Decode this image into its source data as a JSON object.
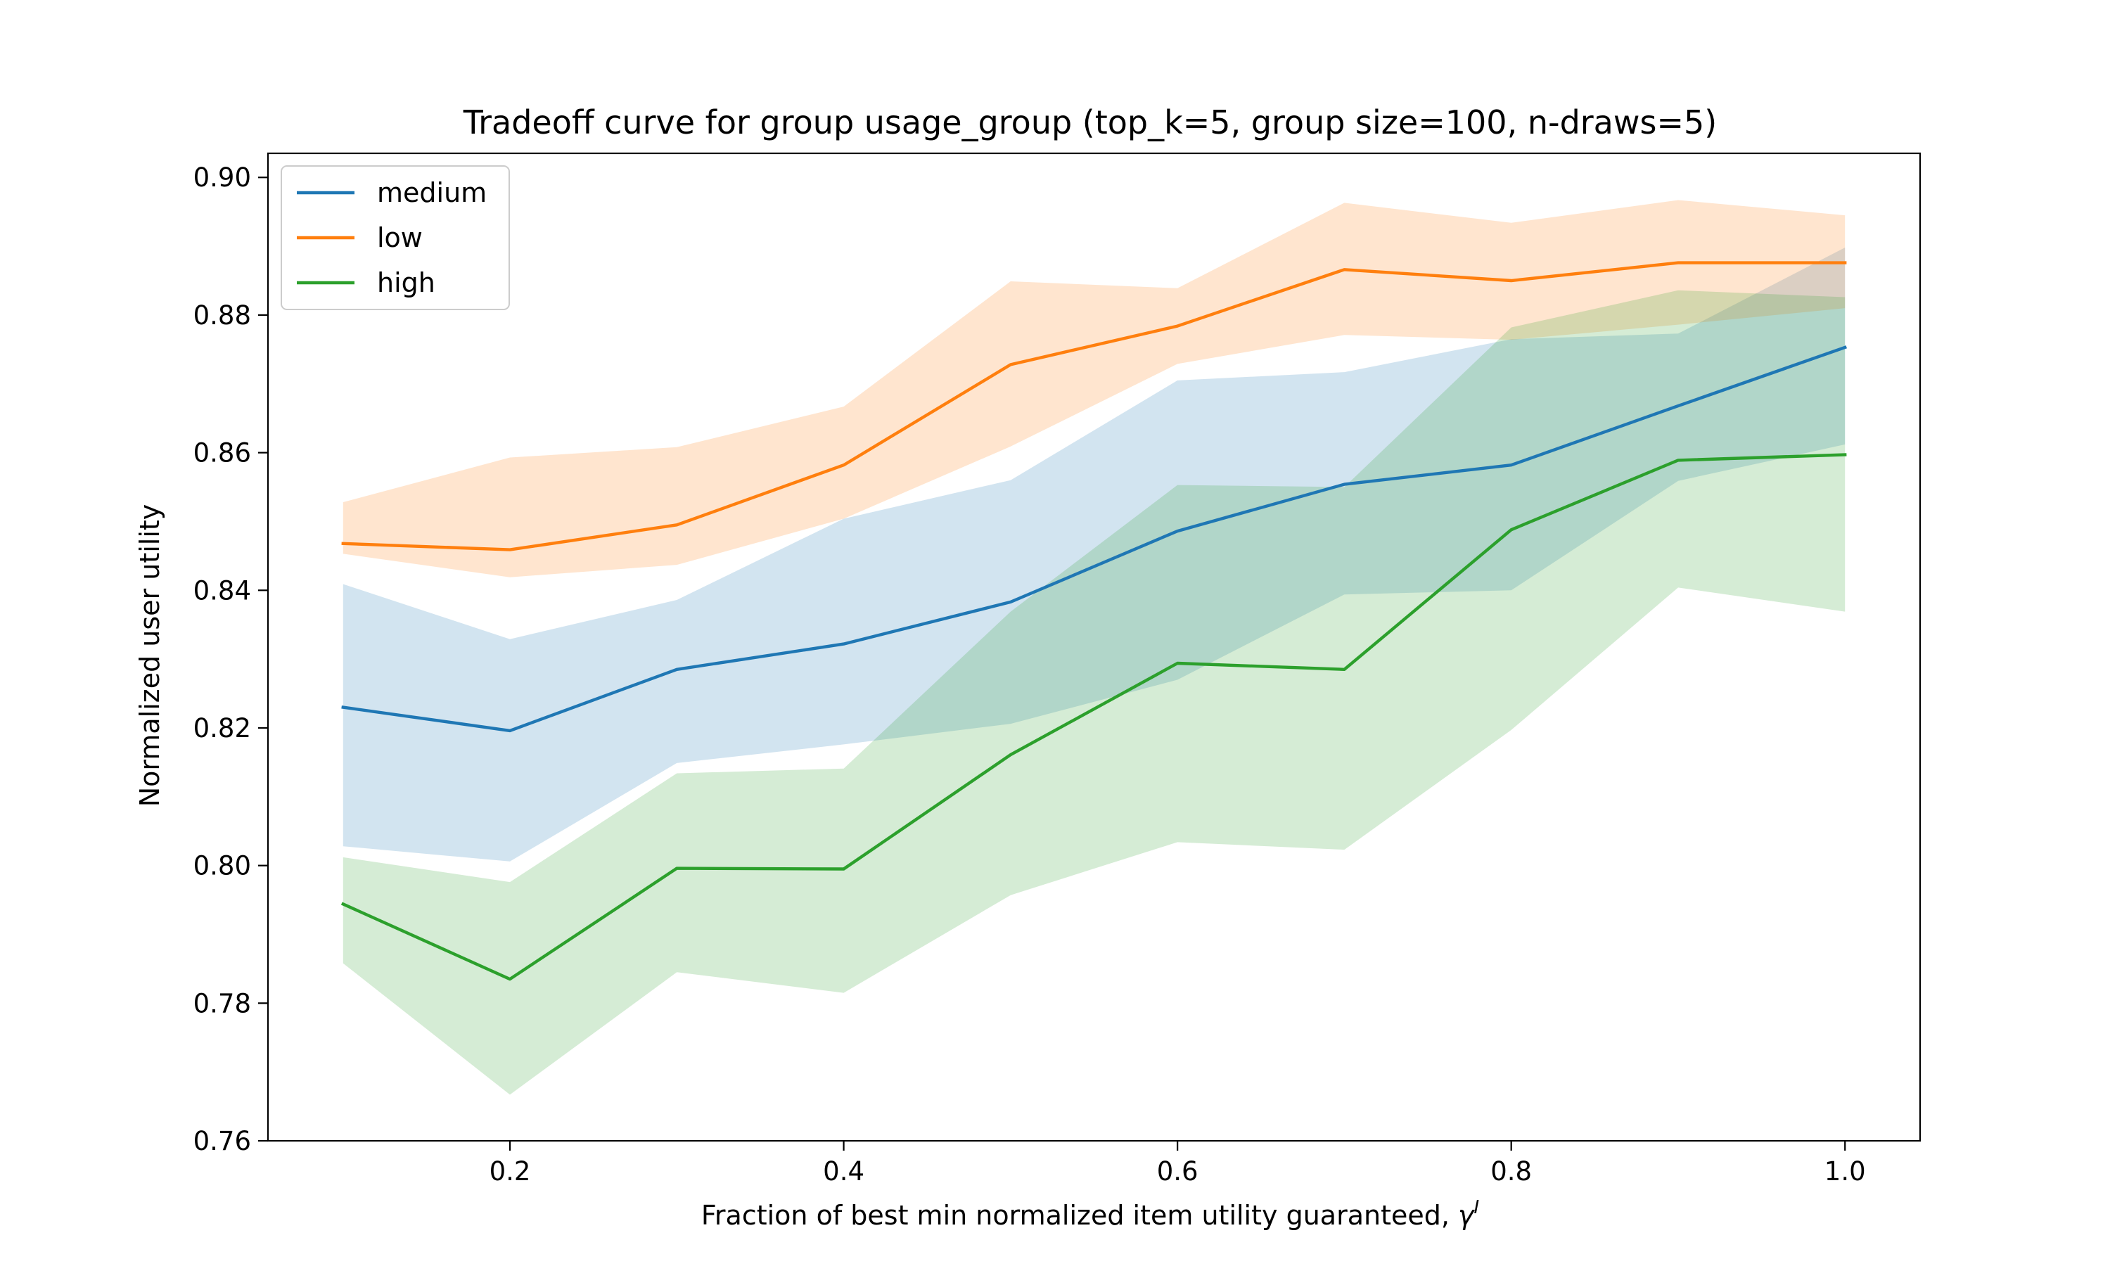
{
  "chart_data": {
    "type": "line",
    "title": "Tradeoff curve for group usage_group (top_k=5, group size=100, n-draws=5)",
    "xlabel": "Fraction of best min normalized item utility guaranteed, ",
    "xlabel_symbol": "γ",
    "xlabel_superscript": "I",
    "ylabel": "Normalized user utility",
    "xlim": [
      0.055,
      1.045
    ],
    "ylim": [
      0.76,
      0.9035
    ],
    "x_ticks": [
      0.2,
      0.4,
      0.6,
      0.8,
      1.0
    ],
    "x_tick_labels": [
      "0.2",
      "0.4",
      "0.6",
      "0.8",
      "1.0"
    ],
    "y_ticks": [
      0.76,
      0.78,
      0.8,
      0.82,
      0.84,
      0.86,
      0.88,
      0.9
    ],
    "y_tick_labels": [
      "0.76",
      "0.78",
      "0.80",
      "0.82",
      "0.84",
      "0.86",
      "0.88",
      "0.90"
    ],
    "grid": false,
    "legend_position": "top-left",
    "x": [
      0.1,
      0.2,
      0.3,
      0.4,
      0.5,
      0.6,
      0.7,
      0.8,
      0.9,
      1.0
    ],
    "series": [
      {
        "name": "medium",
        "color": "#1f77b4",
        "values": [
          0.823,
          0.8196,
          0.8285,
          0.8322,
          0.8383,
          0.8486,
          0.8554,
          0.8582,
          0.8668,
          0.8753
        ],
        "upper": [
          0.8409,
          0.8329,
          0.8386,
          0.8504,
          0.856,
          0.8705,
          0.8717,
          0.8765,
          0.8773,
          0.8898
        ],
        "lower": [
          0.8028,
          0.8006,
          0.8149,
          0.8176,
          0.8206,
          0.827,
          0.8394,
          0.84,
          0.8559,
          0.8612
        ]
      },
      {
        "name": "low",
        "color": "#ff7f0e",
        "values": [
          0.8468,
          0.8459,
          0.8495,
          0.8582,
          0.8728,
          0.8784,
          0.8866,
          0.885,
          0.8876,
          0.8876
        ],
        "upper": [
          0.8528,
          0.8593,
          0.8608,
          0.8667,
          0.8849,
          0.8839,
          0.8963,
          0.8934,
          0.8967,
          0.8945
        ],
        "lower": [
          0.8453,
          0.8419,
          0.8437,
          0.8504,
          0.8609,
          0.8729,
          0.8771,
          0.8764,
          0.8786,
          0.881
        ]
      },
      {
        "name": "high",
        "color": "#2ca02c",
        "values": [
          0.7944,
          0.7835,
          0.7996,
          0.7995,
          0.8161,
          0.8294,
          0.8285,
          0.8488,
          0.8589,
          0.8597
        ],
        "upper": [
          0.8012,
          0.7976,
          0.8134,
          0.8141,
          0.8369,
          0.8553,
          0.855,
          0.8782,
          0.8836,
          0.8826
        ],
        "lower": [
          0.7858,
          0.7667,
          0.7845,
          0.7815,
          0.7957,
          0.8034,
          0.8023,
          0.8197,
          0.8404,
          0.8369
        ]
      }
    ]
  }
}
